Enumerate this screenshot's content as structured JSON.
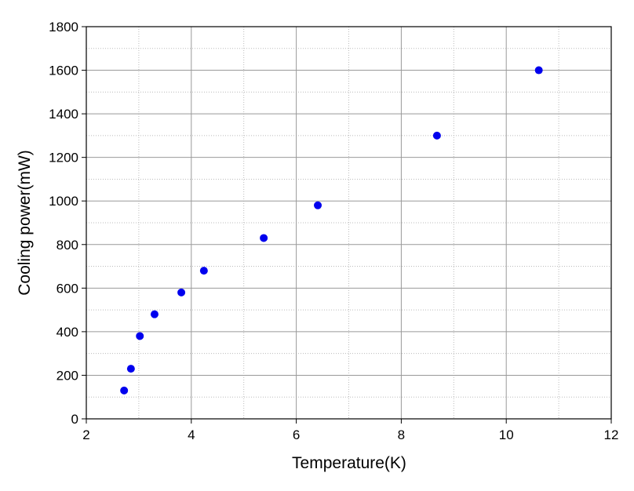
{
  "chart_data": {
    "type": "scatter",
    "xlabel": "Temperature(K)",
    "ylabel": "Cooling power(mW)",
    "x": [
      2.72,
      2.85,
      3.02,
      3.3,
      3.81,
      4.24,
      5.38,
      6.41,
      8.68,
      10.62
    ],
    "values": [
      130,
      230,
      380,
      480,
      580,
      680,
      830,
      980,
      1300,
      1600
    ],
    "color": "#0000ee",
    "xlim": [
      2,
      12
    ],
    "xticks": [
      2,
      4,
      6,
      8,
      10,
      12
    ],
    "ylim": [
      0,
      1800
    ],
    "yticks": [
      0,
      200,
      400,
      600,
      800,
      1000,
      1200,
      1400,
      1600,
      1800
    ],
    "grid": true,
    "minor_grid": true
  }
}
